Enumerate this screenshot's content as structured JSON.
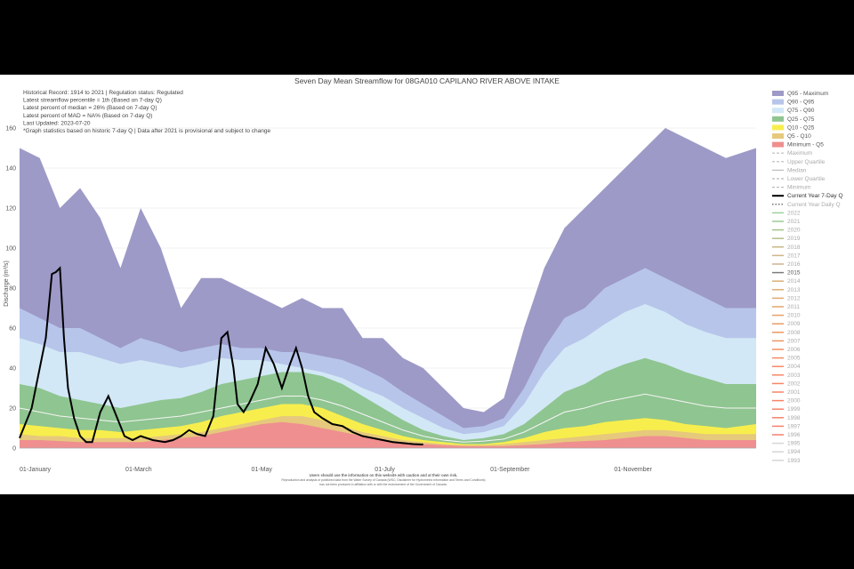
{
  "chart_data": {
    "type": "area",
    "title": "Seven Day Mean Streamflow for 08GA010 CAPILANO RIVER ABOVE INTAKE",
    "info": [
      "Historical Record: 1914 to 2021 | Regulation status: Regulated",
      "Latest streamflow percentile = 1th (Based on 7-day Q)",
      "Latest percent of median = 26% (Based on 7-day Q)",
      "Latest percent of MAD = NA% (Based on 7-day Q)",
      "Last Updated: 2023-07-20",
      "*Graph statistics based on historic 7-day Q  | Data after 2021 is provisional and subject to change"
    ],
    "ylabel": "Discharge (m³/s)",
    "ylim": [
      0,
      160
    ],
    "y_ticks": [
      "0",
      "20",
      "40",
      "60",
      "80",
      "100",
      "120",
      "140",
      "160"
    ],
    "x_ticks": [
      {
        "label": "01-January",
        "day": 0
      },
      {
        "label": "01-March",
        "day": 59
      },
      {
        "label": "01-May",
        "day": 120
      },
      {
        "label": "01-July",
        "day": 181
      },
      {
        "label": "01-September",
        "day": 243
      },
      {
        "label": "01-November",
        "day": 304
      }
    ],
    "x_days": [
      0,
      10,
      20,
      30,
      40,
      50,
      60,
      70,
      80,
      90,
      100,
      110,
      120,
      130,
      140,
      150,
      160,
      170,
      180,
      190,
      200,
      210,
      220,
      230,
      240,
      250,
      260,
      270,
      280,
      290,
      300,
      310,
      320,
      330,
      340,
      350,
      365
    ],
    "bands": [
      {
        "name": "Q95 - Maximum",
        "color": "#9d9ac7",
        "values": [
          150,
          145,
          120,
          130,
          115,
          90,
          120,
          100,
          70,
          85,
          85,
          80,
          75,
          70,
          75,
          70,
          70,
          55,
          55,
          45,
          40,
          30,
          20,
          18,
          25,
          60,
          90,
          110,
          120,
          130,
          140,
          150,
          160,
          155,
          150,
          145,
          150
        ]
      },
      {
        "name": "Q90 - Q95",
        "color": "#b7c5ea",
        "values": [
          70,
          65,
          60,
          60,
          55,
          50,
          55,
          52,
          48,
          50,
          52,
          50,
          50,
          48,
          48,
          46,
          44,
          40,
          35,
          28,
          22,
          16,
          10,
          11,
          15,
          30,
          50,
          65,
          70,
          80,
          85,
          90,
          85,
          80,
          75,
          70,
          70
        ]
      },
      {
        "name": "Q75 - Q90",
        "color": "#d2e8f6",
        "values": [
          55,
          52,
          48,
          48,
          45,
          42,
          44,
          42,
          40,
          42,
          45,
          44,
          44,
          42,
          40,
          38,
          35,
          30,
          26,
          20,
          15,
          10,
          7,
          8,
          11,
          22,
          38,
          50,
          55,
          62,
          68,
          72,
          68,
          62,
          58,
          55,
          55
        ]
      },
      {
        "name": "Q25 - Q75",
        "color": "#8fc590",
        "values": [
          32,
          30,
          26,
          24,
          22,
          20,
          22,
          24,
          25,
          28,
          32,
          34,
          36,
          38,
          38,
          36,
          32,
          26,
          20,
          14,
          9,
          6,
          4,
          5,
          7,
          12,
          20,
          28,
          32,
          38,
          42,
          45,
          42,
          38,
          35,
          32,
          32
        ]
      },
      {
        "name": "Q10 - Q25",
        "color": "#f7ee4d",
        "values": [
          12,
          11,
          10,
          9,
          9,
          8,
          9,
          10,
          11,
          13,
          16,
          18,
          20,
          22,
          22,
          20,
          16,
          12,
          9,
          6,
          4,
          3,
          2,
          2,
          3,
          5,
          8,
          10,
          11,
          13,
          14,
          15,
          14,
          12,
          11,
          10,
          12
        ]
      },
      {
        "name": "Q5 - Q10",
        "color": "#e6c97c",
        "values": [
          7,
          6,
          6,
          5,
          5,
          5,
          5,
          6,
          7,
          8,
          10,
          12,
          14,
          16,
          16,
          14,
          11,
          8,
          6,
          4,
          3,
          2,
          1.5,
          1.5,
          2,
          3,
          4,
          5,
          6,
          7,
          8,
          9,
          9,
          8,
          7,
          7,
          7
        ]
      },
      {
        "name": "Minimum - Q5",
        "color": "#ef8f8f",
        "values": [
          4,
          4,
          3.5,
          3,
          3,
          3,
          3,
          4,
          5,
          6,
          8,
          10,
          12,
          13,
          12,
          10,
          8,
          6,
          4,
          3,
          2,
          1.5,
          1,
          1,
          1,
          1.5,
          2,
          3,
          3.5,
          4,
          5,
          6,
          6,
          5,
          4,
          4,
          4
        ]
      }
    ],
    "median": {
      "name": "Median",
      "values": [
        20,
        18,
        16,
        15,
        14,
        13,
        14,
        15,
        16,
        18,
        20,
        22,
        24,
        26,
        26,
        24,
        21,
        17,
        13,
        9,
        6,
        4,
        3,
        3.5,
        4.5,
        8,
        13,
        18,
        20,
        23,
        25,
        27,
        25,
        23,
        21,
        20,
        20
      ]
    },
    "current_year": {
      "name": "Current Year 7-Day Q",
      "color": "#000000",
      "x_days": [
        0,
        6,
        10,
        13,
        16,
        18,
        20,
        22,
        24,
        27,
        30,
        33,
        36,
        40,
        44,
        48,
        52,
        56,
        60,
        66,
        72,
        76,
        80,
        84,
        88,
        92,
        96,
        100,
        103,
        106,
        108,
        111,
        114,
        118,
        122,
        126,
        130,
        134,
        137,
        140,
        143,
        146,
        150,
        155,
        160,
        165,
        170,
        175,
        180,
        185,
        190,
        195,
        200
      ],
      "values": [
        5,
        20,
        40,
        55,
        87,
        88,
        90,
        55,
        30,
        15,
        6,
        3,
        3,
        18,
        26,
        16,
        6,
        4,
        6,
        4,
        3,
        4,
        6,
        9,
        7,
        6,
        16,
        55,
        58,
        40,
        22,
        18,
        23,
        32,
        50,
        42,
        30,
        42,
        50,
        40,
        26,
        18,
        15,
        12,
        11,
        8,
        6,
        5,
        4,
        3,
        2.5,
        2,
        1.8
      ]
    },
    "current_daily": {
      "name": "Current Year Daily Q"
    },
    "legend_extra": [
      {
        "name": "Maximum",
        "style": "dash"
      },
      {
        "name": "Upper Quartile",
        "style": "dash"
      },
      {
        "name": "Median",
        "style": "solid"
      },
      {
        "name": "Lower Quartile",
        "style": "dash"
      },
      {
        "name": "Minimum",
        "style": "dash"
      }
    ],
    "years": [
      "2022",
      "2021",
      "2020",
      "2019",
      "2018",
      "2017",
      "2016",
      "2015",
      "2014",
      "2013",
      "2012",
      "2011",
      "2010",
      "2009",
      "2008",
      "2007",
      "2006",
      "2005",
      "2004",
      "2003",
      "2002",
      "2001",
      "2000",
      "1999",
      "1998",
      "1997",
      "1996",
      "1995",
      "1994",
      "1993"
    ],
    "year_colors": [
      "#9fd19b",
      "#9ccb97",
      "#a4c48c",
      "#b4be88",
      "#c8b889",
      "#d0b48c",
      "#cfb390",
      "#7c7c7c",
      "#d8b07a",
      "#dcad75",
      "#e0a96e",
      "#e2a46a",
      "#e6a066",
      "#e99b64",
      "#ec9762",
      "#ef9362",
      "#f18f62",
      "#f38c63",
      "#f48965",
      "#f58766",
      "#f58567",
      "#f58468",
      "#f68369",
      "#f6826a",
      "#f6816b",
      "#f6806c",
      "#f6806d",
      "#d6d6d6",
      "#d6d6d6",
      "#d6d6d6"
    ],
    "highlight_year": "2015",
    "footer": [
      "Users should use the information on this website with caution and at their own risk.",
      "Reproduction and analysis of published data from the Water Survey of Canada (WSC; Disclaimer for Hydrometric Information and Terms and Conditions)",
      "has not been produced in affiliation with or with the endorsement of the Government of Canada."
    ]
  }
}
